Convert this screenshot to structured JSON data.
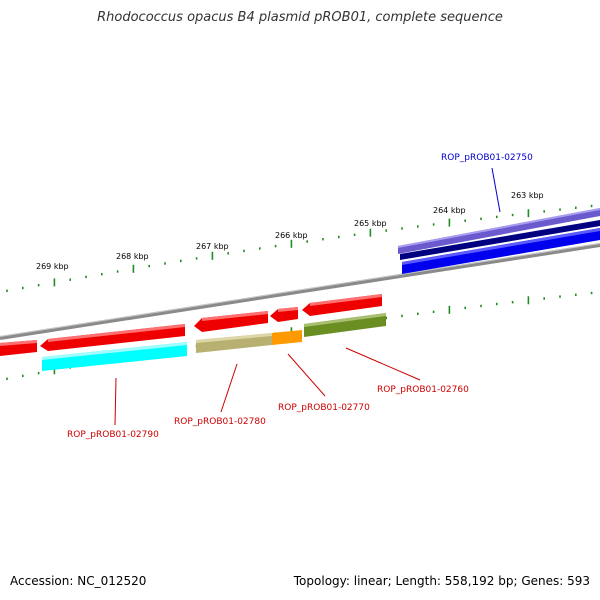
{
  "title": "Rhodococcus opacus B4 plasmid pROB01, complete sequence",
  "footer": {
    "accession": "Accession: NC_012520",
    "summary": "Topology: linear; Length: 558,192 bp; Genes: 593"
  },
  "scale_labels": [
    "269 kbp",
    "268 kbp",
    "267 kbp",
    "266 kbp",
    "265 kbp",
    "264 kbp",
    "263 kbp"
  ],
  "gene_labels": [
    {
      "text": "ROP_pROB01-02750",
      "color": "#0000cc"
    },
    {
      "text": "ROP_pROB01-02760",
      "color": "#cc0000"
    },
    {
      "text": "ROP_pROB01-02770",
      "color": "#cc0000"
    },
    {
      "text": "ROP_pROB01-02780",
      "color": "#cc0000"
    },
    {
      "text": "ROP_pROB01-02790",
      "color": "#cc0000"
    }
  ],
  "colors": {
    "backbone": "#888888",
    "cds_forward": "#ee0000",
    "gene_blue": "#0000ee",
    "gene_navy": "#000080",
    "gene_purple": "#6a5acd",
    "cyan": "#00ffff",
    "khaki": "#b8b070",
    "orange": "#ff9900",
    "olive": "#6b8e23",
    "tick": "#228b22"
  }
}
